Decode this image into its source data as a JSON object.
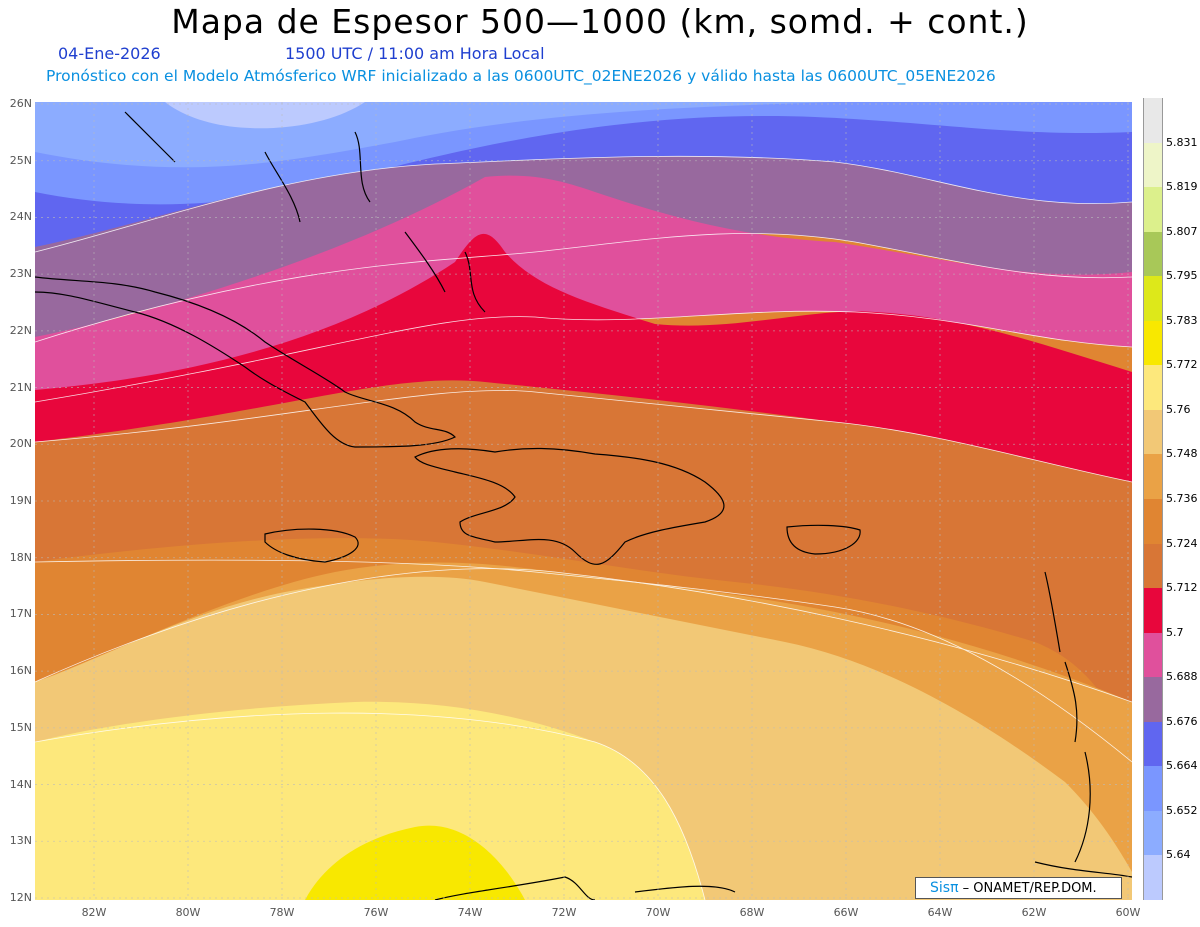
{
  "header": {
    "title": "Mapa de Espesor 500—1000 (km, somd. + cont.)",
    "date": "04-Ene-2026",
    "time": "1500 UTC / 11:00 am Hora Local",
    "description": "Pronóstico con el Modelo Atmósferico WRF inicializado a las 0600UTC_02ENE2026 y válido hasta las  0600UTC_05ENE2026"
  },
  "map": {
    "lat_labels": [
      "26N",
      "25N",
      "24N",
      "23N",
      "22N",
      "21N",
      "20N",
      "19N",
      "18N",
      "17N",
      "16N",
      "15N",
      "14N",
      "13N",
      "12N"
    ],
    "lon_labels": [
      "82W",
      "80W",
      "78W",
      "76W",
      "74W",
      "72W",
      "70W",
      "68W",
      "66W",
      "64W",
      "62W",
      "60W"
    ]
  },
  "colorbar": {
    "labels": [
      "5.831",
      "5.819",
      "5.807",
      "5.795",
      "5.783",
      "5.772",
      "5.76",
      "5.748",
      "5.736",
      "5.724",
      "5.712",
      "5.7",
      "5.688",
      "5.676",
      "5.664",
      "5.652",
      "5.64"
    ],
    "colors": [
      "#e8e8e8",
      "#eef5c8",
      "#dcf08c",
      "#a8c858",
      "#dde81a",
      "#f8e800",
      "#fde87c",
      "#f2c876",
      "#eaa246",
      "#e08532",
      "#d87636",
      "#e8063c",
      "#e0509c",
      "#98699e",
      "#6066f0",
      "#7a96ff",
      "#8cacff",
      "#bccafe"
    ]
  },
  "credit": {
    "logo": "Sisπ",
    "text": "– ONAMET/REP.DOM."
  }
}
